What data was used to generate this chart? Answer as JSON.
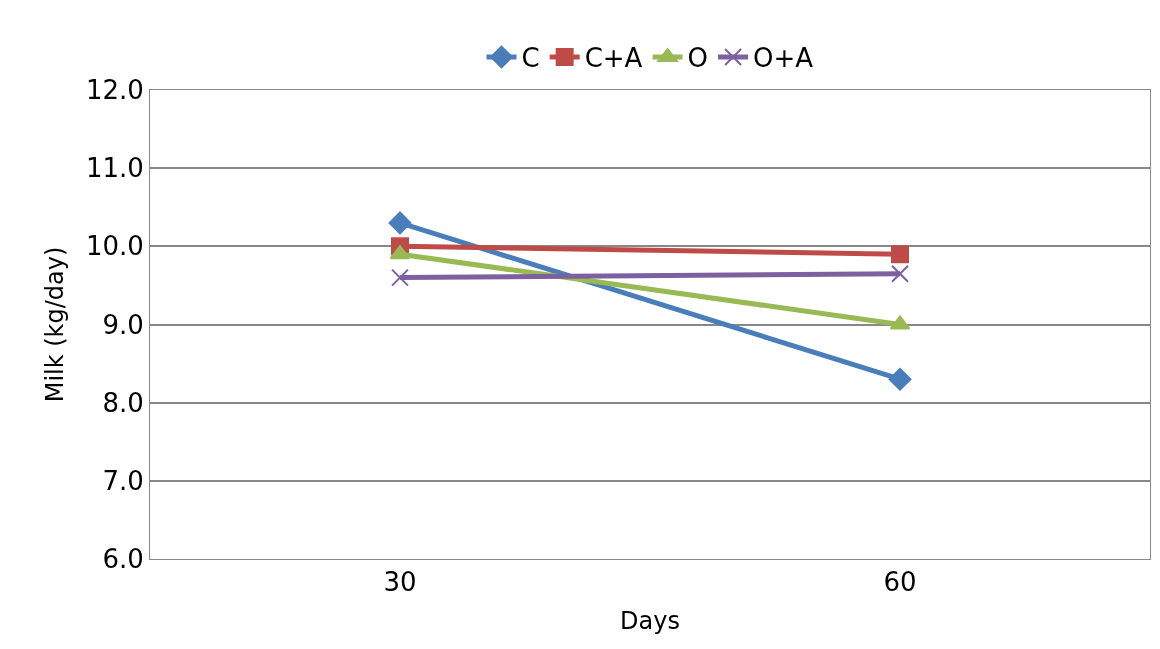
{
  "chart_data": {
    "type": "line",
    "xlabel": "Days",
    "ylabel": "Milk (kg/day)",
    "categories": [
      "30",
      "60"
    ],
    "series": [
      {
        "name": "C",
        "color": "#4a7ebb",
        "marker": "diamond",
        "values": [
          10.3,
          8.3
        ]
      },
      {
        "name": "C+A",
        "color": "#be4b48",
        "marker": "square",
        "values": [
          10.0,
          9.9
        ]
      },
      {
        "name": "O",
        "color": "#98b954",
        "marker": "triangle",
        "values": [
          9.9,
          9.0
        ]
      },
      {
        "name": "O+A",
        "color": "#7d60a0",
        "marker": "cross",
        "values": [
          9.6,
          9.65
        ]
      }
    ],
    "ylim": [
      6,
      12
    ],
    "yticks": [
      {
        "value": 6,
        "label": "6.0"
      },
      {
        "value": 7,
        "label": "7.0"
      },
      {
        "value": 8,
        "label": "8.0"
      },
      {
        "value": 9,
        "label": "9.0"
      },
      {
        "value": 10,
        "label": "10.0"
      },
      {
        "value": 11,
        "label": "11.0"
      },
      {
        "value": 12,
        "label": "12.0"
      }
    ],
    "grid": "y",
    "legend": "top",
    "line_style": "solid"
  }
}
